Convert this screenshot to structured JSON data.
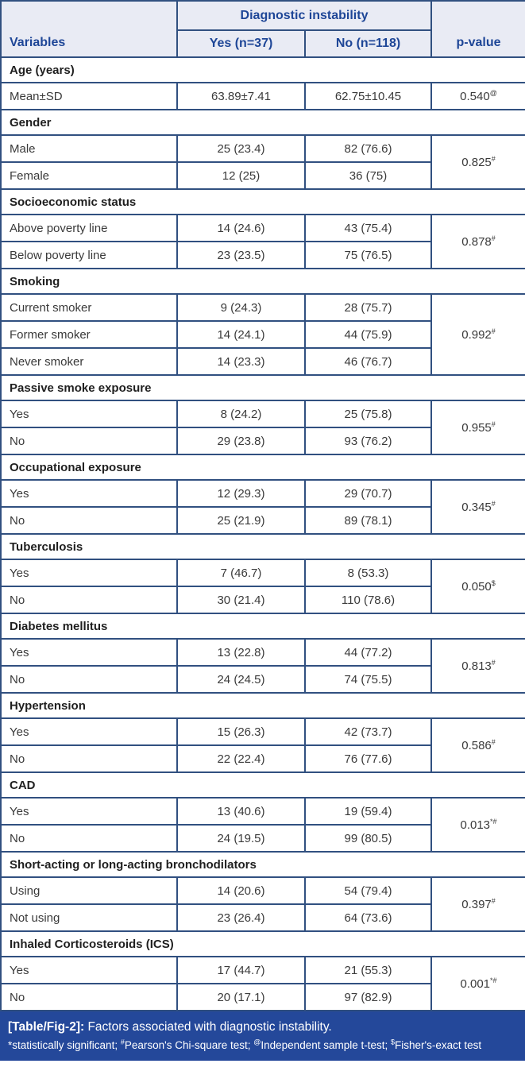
{
  "colors": {
    "border": "#315080",
    "header_bg": "#e9ebf4",
    "header_text": "#1e4697",
    "body_text": "#3a3a3a",
    "section_text": "#1f1f1f",
    "caption_bg": "#24489a",
    "caption_text": "#ffffff"
  },
  "table": {
    "header": {
      "variables": "Variables",
      "group": "Diagnostic instability",
      "yes": "Yes (n=37)",
      "no": "No (n=118)",
      "p_value": "p-value"
    },
    "sections": [
      {
        "title": "Age (years)",
        "rows": [
          {
            "label": "Mean±SD",
            "yes": "63.89±7.41",
            "no": "62.75±10.45"
          }
        ],
        "p_value": "0.540",
        "p_sup": "@"
      },
      {
        "title": "Gender",
        "rows": [
          {
            "label": "Male",
            "yes": "25 (23.4)",
            "no": "82 (76.6)"
          },
          {
            "label": "Female",
            "yes": "12 (25)",
            "no": "36 (75)"
          }
        ],
        "p_value": "0.825",
        "p_sup": "#"
      },
      {
        "title": "Socioeconomic status",
        "rows": [
          {
            "label": "Above poverty line",
            "yes": "14 (24.6)",
            "no": "43 (75.4)"
          },
          {
            "label": "Below poverty line",
            "yes": "23 (23.5)",
            "no": "75 (76.5)"
          }
        ],
        "p_value": "0.878",
        "p_sup": "#"
      },
      {
        "title": "Smoking",
        "rows": [
          {
            "label": "Current smoker",
            "yes": "9 (24.3)",
            "no": "28 (75.7)"
          },
          {
            "label": "Former smoker",
            "yes": "14 (24.1)",
            "no": "44 (75.9)"
          },
          {
            "label": "Never smoker",
            "yes": "14 (23.3)",
            "no": "46 (76.7)"
          }
        ],
        "p_value": "0.992",
        "p_sup": "#"
      },
      {
        "title": "Passive smoke exposure",
        "rows": [
          {
            "label": "Yes",
            "yes": "8 (24.2)",
            "no": "25 (75.8)"
          },
          {
            "label": "No",
            "yes": "29 (23.8)",
            "no": "93 (76.2)"
          }
        ],
        "p_value": "0.955",
        "p_sup": "#"
      },
      {
        "title": "Occupational exposure",
        "rows": [
          {
            "label": "Yes",
            "yes": "12 (29.3)",
            "no": "29 (70.7)"
          },
          {
            "label": "No",
            "yes": "25 (21.9)",
            "no": "89 (78.1)"
          }
        ],
        "p_value": "0.345",
        "p_sup": "#"
      },
      {
        "title": "Tuberculosis",
        "rows": [
          {
            "label": "Yes",
            "yes": "7 (46.7)",
            "no": "8 (53.3)"
          },
          {
            "label": "No",
            "yes": "30 (21.4)",
            "no": "110 (78.6)"
          }
        ],
        "p_value": "0.050",
        "p_sup": "$"
      },
      {
        "title": "Diabetes mellitus",
        "rows": [
          {
            "label": "Yes",
            "yes": "13 (22.8)",
            "no": "44 (77.2)"
          },
          {
            "label": "No",
            "yes": "24 (24.5)",
            "no": "74 (75.5)"
          }
        ],
        "p_value": "0.813",
        "p_sup": "#"
      },
      {
        "title": "Hypertension",
        "rows": [
          {
            "label": "Yes",
            "yes": "15 (26.3)",
            "no": "42 (73.7)"
          },
          {
            "label": "No",
            "yes": "22 (22.4)",
            "no": "76 (77.6)"
          }
        ],
        "p_value": "0.586",
        "p_sup": "#"
      },
      {
        "title": "CAD",
        "rows": [
          {
            "label": "Yes",
            "yes": "13 (40.6)",
            "no": "19 (59.4)"
          },
          {
            "label": "No",
            "yes": "24 (19.5)",
            "no": "99 (80.5)"
          }
        ],
        "p_value": "0.013",
        "p_sup": "*#"
      },
      {
        "title": "Short-acting or long-acting bronchodilators",
        "rows": [
          {
            "label": "Using",
            "yes": "14 (20.6)",
            "no": "54 (79.4)"
          },
          {
            "label": "Not using",
            "yes": "23 (26.4)",
            "no": "64 (73.6)"
          }
        ],
        "p_value": "0.397",
        "p_sup": "#"
      },
      {
        "title": "Inhaled Corticosteroids (ICS)",
        "rows": [
          {
            "label": "Yes",
            "yes": "17 (44.7)",
            "no": "21 (55.3)"
          },
          {
            "label": "No",
            "yes": "20 (17.1)",
            "no": "97 (82.9)"
          }
        ],
        "p_value": "0.001",
        "p_sup": "*#"
      }
    ]
  },
  "footer": {
    "caption_label": "[Table/Fig-2]:",
    "caption_text": "Factors associated with diagnostic instability.",
    "notes": [
      {
        "symbol": "*",
        "sup": false,
        "text": "statistically significant; "
      },
      {
        "symbol": "#",
        "sup": true,
        "text": "Pearson's Chi-square test; "
      },
      {
        "symbol": "@",
        "sup": true,
        "text": "Independent sample t-test; "
      },
      {
        "symbol": "$",
        "sup": true,
        "text": "Fisher's-exact test"
      }
    ]
  }
}
